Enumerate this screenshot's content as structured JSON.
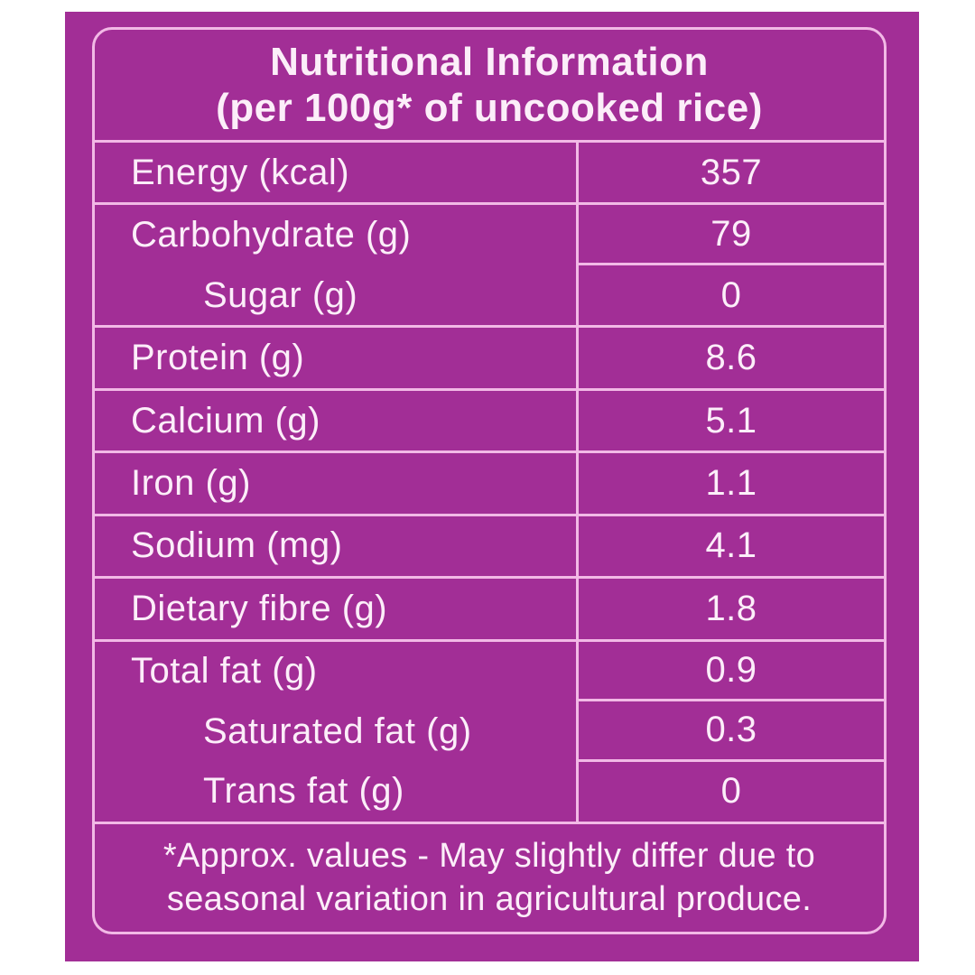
{
  "colors": {
    "page_bg": "#FFFFFF",
    "panel_bg": "#A22E96",
    "line": "#F2B9E6",
    "text": "#FCEEF9"
  },
  "title": {
    "line1": "Nutritional Information",
    "line2": "(per 100g* of uncooked rice)"
  },
  "table": {
    "groups": [
      {
        "rows": [
          {
            "label": "Energy (kcal)",
            "value": "357",
            "indent": false
          }
        ]
      },
      {
        "rows": [
          {
            "label": "Carbohydrate (g)",
            "value": "79",
            "indent": false
          },
          {
            "label": "Sugar (g)",
            "value": "0",
            "indent": true
          }
        ]
      },
      {
        "rows": [
          {
            "label": "Protein (g)",
            "value": "8.6",
            "indent": false
          }
        ]
      },
      {
        "rows": [
          {
            "label": "Calcium (g)",
            "value": "5.1",
            "indent": false
          }
        ]
      },
      {
        "rows": [
          {
            "label": "Iron (g)",
            "value": "1.1",
            "indent": false
          }
        ]
      },
      {
        "rows": [
          {
            "label": "Sodium (mg)",
            "value": "4.1",
            "indent": false
          }
        ]
      },
      {
        "rows": [
          {
            "label": "Dietary fibre (g)",
            "value": "1.8",
            "indent": false
          }
        ]
      },
      {
        "rows": [
          {
            "label": "Total fat (g)",
            "value": "0.9",
            "indent": false
          },
          {
            "label": "Saturated fat (g)",
            "value": "0.3",
            "indent": true
          },
          {
            "label": "Trans fat (g)",
            "value": "0",
            "indent": true
          }
        ]
      }
    ]
  },
  "footnote": {
    "line1": "*Approx. values - May slightly differ due to",
    "line2": "seasonal variation in agricultural produce."
  }
}
